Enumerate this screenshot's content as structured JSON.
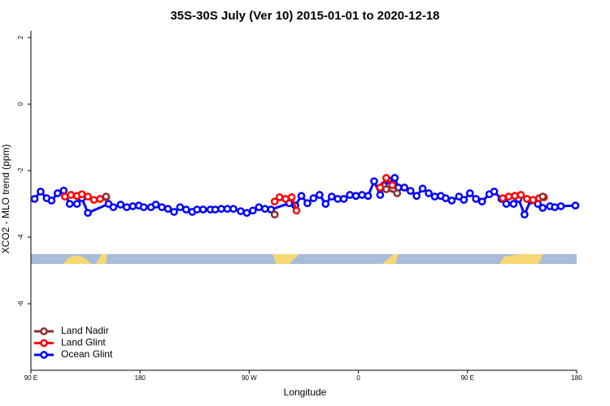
{
  "chart_data": {
    "type": "line",
    "title": "35S-30S July (Ver 10)   2015-01-01 to 2020-12-18",
    "x_label": "Longitude",
    "y_label": "XCO2 - MLO trend (ppm)",
    "xlim": [
      90,
      540
    ],
    "ylim": [
      -8,
      2.2
    ],
    "xticks": [
      {
        "value": 90,
        "label": "90 E"
      },
      180,
      {
        "value": 270,
        "label": "90 W"
      },
      {
        "value": 360,
        "label": "0"
      },
      {
        "value": 450,
        "label": "90 E"
      },
      {
        "value": 540,
        "label": "180"
      }
    ],
    "yticks": [
      -6,
      -4,
      -2,
      0,
      2
    ],
    "legend": "bottom-left",
    "series": [
      {
        "name": "Land Nadir",
        "color": "#8b2e2e",
        "x": [
          152,
          null,
          291,
          null,
          383,
          392,
          null,
          512
        ],
        "values": [
          -2.78,
          null,
          -3.32,
          null,
          -2.56,
          -2.68,
          null,
          -2.78
        ]
      },
      {
        "name": "Land Glint",
        "color": "#ff0000",
        "x": [
          118,
          123,
          128,
          132,
          137,
          142,
          147,
          152,
          null,
          291,
          295,
          300,
          305,
          309,
          null,
          378,
          383,
          388,
          null,
          479,
          484,
          489,
          494,
          499,
          504,
          509,
          513
        ],
        "values": [
          -2.78,
          -2.73,
          -2.76,
          -2.71,
          -2.78,
          -2.88,
          -2.85,
          -2.8,
          null,
          -2.93,
          -2.8,
          -2.85,
          -2.8,
          -3.2,
          null,
          -2.51,
          -2.22,
          -2.44,
          null,
          -2.83,
          -2.78,
          -2.76,
          -2.73,
          -2.85,
          -2.88,
          -2.83,
          -2.8
        ]
      },
      {
        "name": "Ocean Glint",
        "color": "#0000ff",
        "x": [
          93,
          98,
          103,
          107,
          112,
          117,
          122,
          128,
          132,
          137,
          154,
          158,
          164,
          169,
          174,
          179,
          183,
          189,
          193,
          198,
          203,
          208,
          213,
          218,
          223,
          227,
          232,
          238,
          242,
          247,
          252,
          257,
          263,
          268,
          273,
          278,
          283,
          288,
          303,
          308,
          313,
          318,
          323,
          328,
          333,
          338,
          343,
          348,
          353,
          358,
          363,
          368,
          373,
          378,
          381,
          385,
          390,
          393,
          398,
          403,
          408,
          413,
          418,
          423,
          428,
          432,
          437,
          443,
          447,
          452,
          457,
          462,
          468,
          472,
          478,
          482,
          488,
          492,
          497,
          502,
          508,
          512,
          518,
          522,
          527,
          539
        ],
        "values": [
          -2.85,
          -2.63,
          -2.83,
          -2.9,
          -2.68,
          -2.6,
          -3.0,
          -3.0,
          -2.83,
          -3.27,
          -3.0,
          -3.1,
          -3.02,
          -3.1,
          -3.07,
          -3.05,
          -3.1,
          -3.1,
          -3.02,
          -3.1,
          -3.15,
          -3.24,
          -3.1,
          -3.17,
          -3.24,
          -3.17,
          -3.17,
          -3.17,
          -3.17,
          -3.15,
          -3.15,
          -3.15,
          -3.22,
          -3.27,
          -3.2,
          -3.1,
          -3.15,
          -3.17,
          -2.98,
          -3.05,
          -2.76,
          -2.98,
          -2.83,
          -2.73,
          -3.0,
          -2.78,
          -2.85,
          -2.85,
          -2.73,
          -2.76,
          -2.73,
          -2.76,
          -2.32,
          -2.73,
          -2.44,
          -2.29,
          -2.22,
          -2.51,
          -2.51,
          -2.61,
          -2.76,
          -2.54,
          -2.68,
          -2.78,
          -2.76,
          -2.83,
          -2.9,
          -2.78,
          -2.88,
          -2.68,
          -2.85,
          -2.93,
          -2.71,
          -2.63,
          -2.85,
          -3.0,
          -3.0,
          -2.85,
          -3.32,
          -2.9,
          -3.0,
          -3.12,
          -3.07,
          -3.1,
          -3.07,
          -3.05
        ]
      }
    ]
  }
}
